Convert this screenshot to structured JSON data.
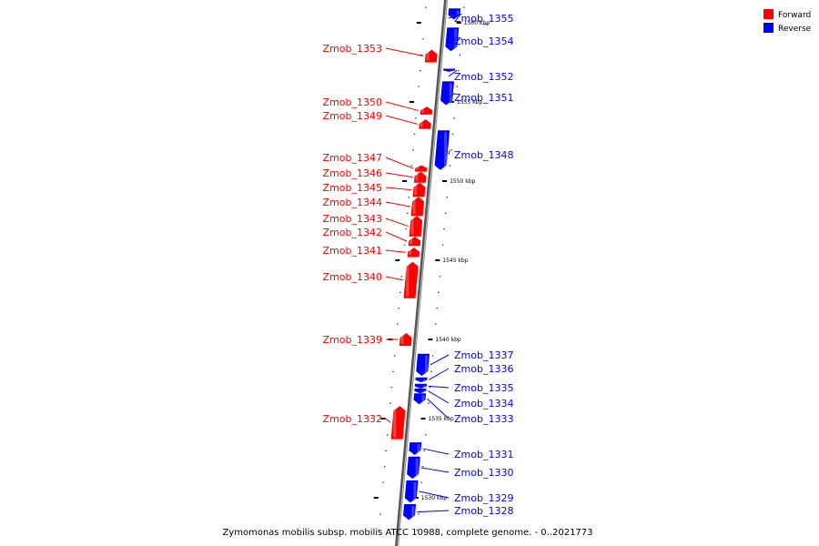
{
  "legend": {
    "forward_label": "Forward",
    "reverse_label": "Reverse",
    "forward_color": "#ff0000",
    "reverse_color": "#0000ff"
  },
  "caption": "Zymomonas mobilis subsp. mobilis ATCC 10988, complete genome. - 0..2021773",
  "scale_ticks": [
    {
      "kbp": 1530,
      "label": "1530 kbp"
    },
    {
      "kbp": 1535,
      "label": "1535 kbp"
    },
    {
      "kbp": 1540,
      "label": "1540 kbp"
    },
    {
      "kbp": 1545,
      "label": "1545 kbp"
    },
    {
      "kbp": 1550,
      "label": "1550 kbp"
    },
    {
      "kbp": 1555,
      "label": "1555 kbp"
    },
    {
      "kbp": 1560,
      "label": "1560 kbp"
    }
  ],
  "genes": [
    {
      "name": "Zmob_1355",
      "strand": "reverse",
      "start_kbp": 1560.2,
      "end_kbp": 1560.9
    },
    {
      "name": "Zmob_1354",
      "strand": "reverse",
      "start_kbp": 1558.2,
      "end_kbp": 1559.7
    },
    {
      "name": "Zmob_1353",
      "strand": "forward",
      "start_kbp": 1557.5,
      "end_kbp": 1558.3
    },
    {
      "name": "Zmob_1352",
      "strand": "reverse",
      "start_kbp": 1556.9,
      "end_kbp": 1557.1
    },
    {
      "name": "Zmob_1351",
      "strand": "reverse",
      "start_kbp": 1554.8,
      "end_kbp": 1556.3
    },
    {
      "name": "Zmob_1350",
      "strand": "forward",
      "start_kbp": 1554.2,
      "end_kbp": 1554.7
    },
    {
      "name": "Zmob_1349",
      "strand": "forward",
      "start_kbp": 1553.3,
      "end_kbp": 1553.9
    },
    {
      "name": "Zmob_1348",
      "strand": "reverse",
      "start_kbp": 1550.7,
      "end_kbp": 1553.2
    },
    {
      "name": "Zmob_1347",
      "strand": "forward",
      "start_kbp": 1550.6,
      "end_kbp": 1551.0
    },
    {
      "name": "Zmob_1346",
      "strand": "forward",
      "start_kbp": 1549.9,
      "end_kbp": 1550.6
    },
    {
      "name": "Zmob_1345",
      "strand": "forward",
      "start_kbp": 1549.0,
      "end_kbp": 1549.9
    },
    {
      "name": "Zmob_1344",
      "strand": "forward",
      "start_kbp": 1547.8,
      "end_kbp": 1549.0
    },
    {
      "name": "Zmob_1343",
      "strand": "forward",
      "start_kbp": 1546.5,
      "end_kbp": 1547.8
    },
    {
      "name": "Zmob_1342",
      "strand": "forward",
      "start_kbp": 1545.9,
      "end_kbp": 1546.5
    },
    {
      "name": "Zmob_1341",
      "strand": "forward",
      "start_kbp": 1545.2,
      "end_kbp": 1545.8
    },
    {
      "name": "Zmob_1340",
      "strand": "forward",
      "start_kbp": 1542.6,
      "end_kbp": 1544.9
    },
    {
      "name": "Zmob_1339",
      "strand": "forward",
      "start_kbp": 1539.6,
      "end_kbp": 1540.4
    },
    {
      "name": "Zmob_1337",
      "strand": "reverse",
      "start_kbp": 1537.7,
      "end_kbp": 1539.1
    },
    {
      "name": "Zmob_1336",
      "strand": "reverse",
      "start_kbp": 1537.3,
      "end_kbp": 1537.6
    },
    {
      "name": "Zmob_1335",
      "strand": "reverse",
      "start_kbp": 1536.9,
      "end_kbp": 1537.2
    },
    {
      "name": "Zmob_1334",
      "strand": "reverse",
      "start_kbp": 1536.6,
      "end_kbp": 1536.9
    },
    {
      "name": "Zmob_1333",
      "strand": "reverse",
      "start_kbp": 1535.9,
      "end_kbp": 1536.6
    },
    {
      "name": "Zmob_1332",
      "strand": "forward",
      "start_kbp": 1533.7,
      "end_kbp": 1535.8
    },
    {
      "name": "Zmob_1331",
      "strand": "reverse",
      "start_kbp": 1532.7,
      "end_kbp": 1533.5
    },
    {
      "name": "Zmob_1330",
      "strand": "reverse",
      "start_kbp": 1531.2,
      "end_kbp": 1532.6
    },
    {
      "name": "Zmob_1329",
      "strand": "reverse",
      "start_kbp": 1529.7,
      "end_kbp": 1531.1
    },
    {
      "name": "Zmob_1328",
      "strand": "reverse",
      "start_kbp": 1528.6,
      "end_kbp": 1529.6
    }
  ]
}
